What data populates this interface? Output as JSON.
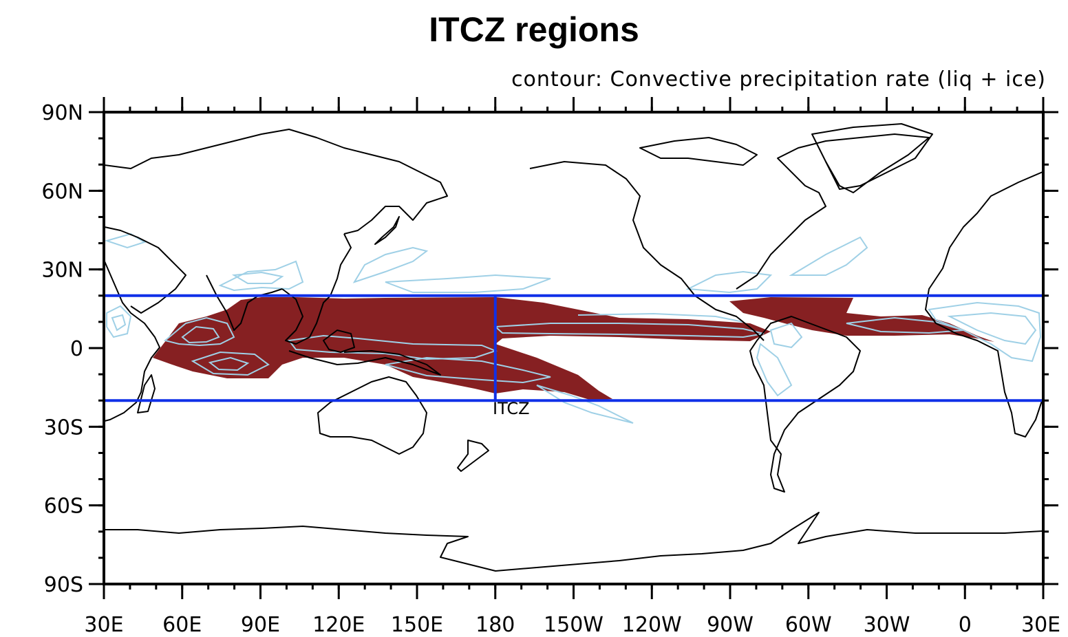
{
  "title": "ITCZ regions",
  "subtitle": "contour: Convective precipitation rate (liq + ice)",
  "map": {
    "lon_range": [
      30,
      390
    ],
    "lat_range": [
      -90,
      90
    ],
    "projection": "cylindrical-equidistant",
    "colors": {
      "shading": "#862022",
      "contours": "#9fd0e6",
      "coastlines": "#000000",
      "region_box": "#1030e8"
    },
    "y_tick_labels": [
      "90N",
      "60N",
      "30N",
      "0",
      "30S",
      "60S",
      "90S"
    ],
    "y_tick_values": [
      90,
      60,
      30,
      0,
      -30,
      -60,
      -90
    ],
    "x_tick_labels": [
      "30E",
      "60E",
      "90E",
      "120E",
      "150E",
      "180",
      "150W",
      "120W",
      "90W",
      "60W",
      "30W",
      "0",
      "30E"
    ],
    "x_tick_values": [
      30,
      60,
      90,
      120,
      150,
      180,
      210,
      240,
      270,
      300,
      330,
      360,
      390
    ]
  },
  "region": {
    "name": "ITCZ",
    "lat_north": 20,
    "lat_south": -20,
    "divider_lon": 180
  }
}
